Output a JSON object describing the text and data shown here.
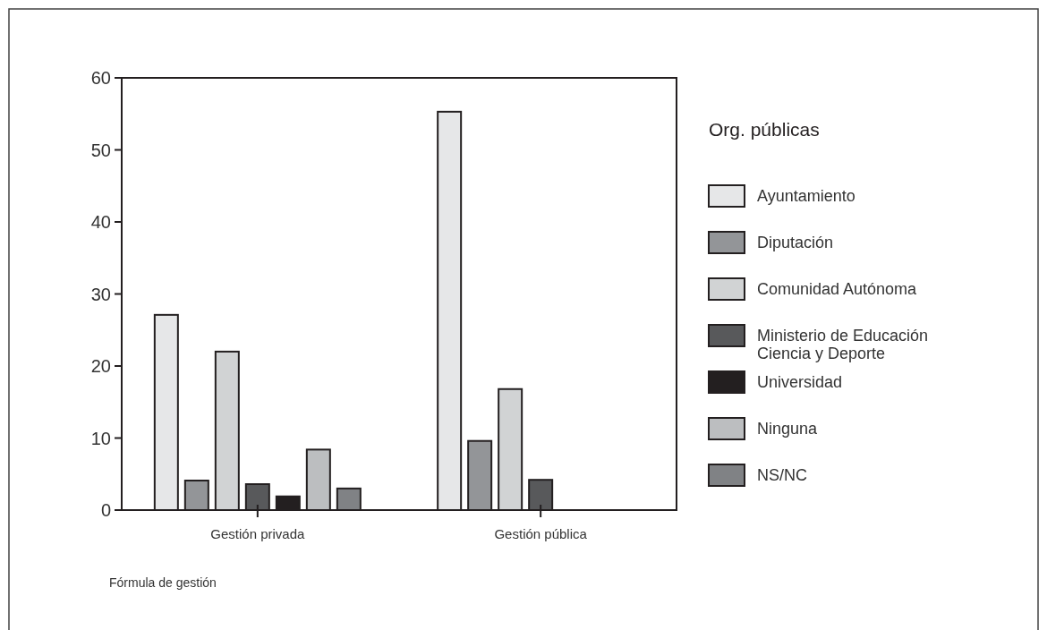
{
  "chart_data": {
    "type": "bar",
    "xlabel": "Fórmula de gestión",
    "legend_title": "Org. públicas",
    "categories": [
      "Gestión privada",
      "Gestión pública"
    ],
    "series": [
      {
        "name": "Ayuntamiento",
        "color": "#e6e7e8",
        "values": [
          27.1,
          55.3
        ]
      },
      {
        "name": "Diputación",
        "color": "#939598",
        "values": [
          4.1,
          9.6
        ]
      },
      {
        "name": "Comunidad Autónoma",
        "color": "#d1d3d4",
        "values": [
          22,
          16.8
        ]
      },
      {
        "name": "Ministerio de Educación\nCiencia y Deporte",
        "color": "#58595b",
        "values": [
          3.6,
          4.2
        ]
      },
      {
        "name": "Universidad",
        "color": "#231f20",
        "values": [
          1.9,
          null
        ]
      },
      {
        "name": "Ninguna",
        "color": "#bcbec0",
        "values": [
          8.4,
          null
        ]
      },
      {
        "name": "NS/NC",
        "color": "#808285",
        "values": [
          3.0,
          null
        ]
      }
    ],
    "ylim": [
      0,
      60
    ],
    "yticks": [
      0,
      10,
      20,
      30,
      40,
      50,
      60
    ],
    "grid": false,
    "legend": "right"
  }
}
